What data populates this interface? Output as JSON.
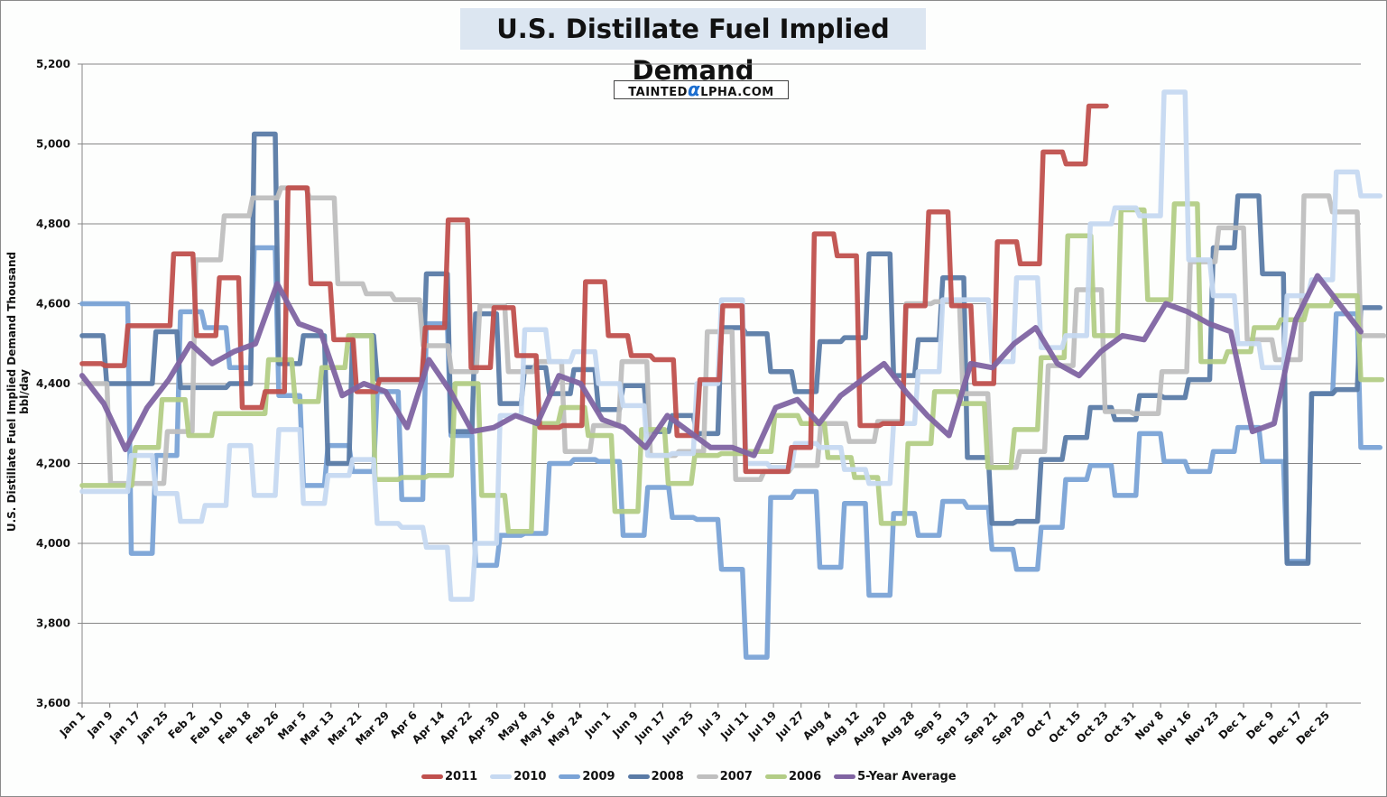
{
  "chart_data": {
    "type": "line",
    "title": "U.S. Distillate Fuel Implied Demand",
    "watermark": "TAINTEDαLPHA.COM",
    "xlabel": "",
    "ylabel": "U.S. Distillate Fuel Implied Demand Thousand bbl/day",
    "ylim": [
      3600,
      5200
    ],
    "yticks": [
      3600,
      3800,
      4000,
      4200,
      4400,
      4600,
      4800,
      5000,
      5200
    ],
    "ytick_labels": [
      "3,600",
      "3,800",
      "4,000",
      "4,200",
      "4,400",
      "4,600",
      "4,800",
      "5,000",
      "5,200"
    ],
    "grid": true,
    "legend_position": "bottom",
    "xtick_labels": [
      "Jan 1",
      "Jan 9",
      "Jan 17",
      "Jan 25",
      "Feb 2",
      "Feb 10",
      "Feb 18",
      "Feb 26",
      "Mar 5",
      "Mar 13",
      "Mar 21",
      "Mar 29",
      "Apr 6",
      "Apr 14",
      "Apr 22",
      "Apr 30",
      "May 8",
      "May 16",
      "May 24",
      "Jun 1",
      "Jun 9",
      "Jun 17",
      "Jun 25",
      "Jul 3",
      "Jul 11",
      "Jul 19",
      "Jul 27",
      "Aug 4",
      "Aug 12",
      "Aug 20",
      "Aug 28",
      "Sep 5",
      "Sep 13",
      "Sep 21",
      "Sep 29",
      "Oct 7",
      "Oct 15",
      "Oct 23",
      "Oct 31",
      "Nov 8",
      "Nov 16",
      "Nov 23",
      "Dec 1",
      "Dec 9",
      "Dec 17",
      "Dec 25"
    ],
    "x_weeks": "weekly observations, week 1 = Jan 1",
    "series": [
      {
        "name": "2011",
        "color": "#c0504d",
        "values": [
          4450,
          4445,
          4545,
          4545,
          4725,
          4520,
          4665,
          4340,
          4380,
          4890,
          4650,
          4510,
          4380,
          4410,
          4410,
          4540,
          4810,
          4440,
          4590,
          4470,
          4290,
          4295,
          4655,
          4520,
          4470,
          4460,
          4270,
          4410,
          4595,
          4180,
          4180,
          4240,
          4775,
          4720,
          4295,
          4300,
          4595,
          4830,
          4595,
          4400,
          4755,
          4700,
          4980,
          4950,
          5095
        ]
      },
      {
        "name": "2010",
        "color": "#c6d9f1",
        "values": [
          4130,
          4130,
          4220,
          4125,
          4055,
          4095,
          4245,
          4120,
          4285,
          4100,
          4170,
          4210,
          4050,
          4040,
          3990,
          3860,
          4000,
          4320,
          4535,
          4455,
          4480,
          4400,
          4345,
          4220,
          4225,
          4400,
          4610,
          4200,
          4190,
          4250,
          4240,
          4185,
          4150,
          4300,
          4430,
          4610,
          4610,
          4455,
          4665,
          4490,
          4520,
          4800,
          4840,
          4820,
          5130,
          4710,
          4620,
          4500,
          4440,
          4620,
          4660,
          4930,
          4870
        ]
      },
      {
        "name": "2009",
        "color": "#7aa3d6",
        "values": [
          4600,
          4600,
          3975,
          4220,
          4580,
          4540,
          4440,
          4740,
          4370,
          4145,
          4245,
          4180,
          4380,
          4110,
          4550,
          4270,
          3945,
          4020,
          4025,
          4200,
          4210,
          4205,
          4020,
          4140,
          4065,
          4060,
          3935,
          3715,
          4115,
          4130,
          3940,
          4100,
          3870,
          4075,
          4020,
          4105,
          4090,
          3985,
          3935,
          4040,
          4160,
          4195,
          4120,
          4275,
          4205,
          4180,
          4230,
          4290,
          4205,
          3955,
          4375,
          4575,
          4240
        ]
      },
      {
        "name": "2008",
        "color": "#5a7ba6",
        "values": [
          4520,
          4400,
          4400,
          4530,
          4390,
          4390,
          4400,
          5025,
          4450,
          4520,
          4200,
          4520,
          4410,
          4410,
          4675,
          4280,
          4575,
          4350,
          4440,
          4375,
          4435,
          4335,
          4395,
          4280,
          4320,
          4275,
          4540,
          4525,
          4430,
          4380,
          4505,
          4515,
          4725,
          4420,
          4510,
          4665,
          4215,
          4050,
          4055,
          4210,
          4265,
          4340,
          4310,
          4370,
          4365,
          4410,
          4740,
          4870,
          4675,
          3950,
          4375,
          4385,
          4590
        ]
      },
      {
        "name": "2007",
        "color": "#bfbfbf",
        "values": [
          4400,
          4150,
          4150,
          4280,
          4710,
          4820,
          4865,
          4890,
          4865,
          4650,
          4625,
          4610,
          4495,
          4430,
          4595,
          4430,
          4455,
          4230,
          4295,
          4455,
          4220,
          4230,
          4530,
          4160,
          4180,
          4195,
          4300,
          4255,
          4305,
          4600,
          4605,
          4375,
          4190,
          4230,
          4445,
          4635,
          4330,
          4325,
          4430,
          4705,
          4790,
          4510,
          4460,
          4870,
          4830,
          4520
        ]
      },
      {
        "name": "2006",
        "color": "#b3cd86",
        "values": [
          4145,
          4145,
          4240,
          4360,
          4270,
          4325,
          4325,
          4460,
          4355,
          4440,
          4520,
          4160,
          4165,
          4170,
          4400,
          4120,
          4030,
          4300,
          4340,
          4270,
          4080,
          4285,
          4150,
          4220,
          4225,
          4230,
          4320,
          4300,
          4215,
          4165,
          4050,
          4250,
          4380,
          4350,
          4190,
          4285,
          4465,
          4770,
          4520,
          4835,
          4610,
          4850,
          4455,
          4480,
          4540,
          4560,
          4595,
          4620,
          4410
        ]
      },
      {
        "name": "5-Year Average",
        "color": "#8064a2",
        "values": [
          4420,
          4350,
          4235,
          4340,
          4410,
          4500,
          4450,
          4480,
          4500,
          4650,
          4550,
          4530,
          4370,
          4400,
          4380,
          4290,
          4460,
          4380,
          4280,
          4290,
          4320,
          4300,
          4420,
          4400,
          4310,
          4290,
          4240,
          4320,
          4280,
          4240,
          4240,
          4220,
          4340,
          4360,
          4300,
          4370,
          4410,
          4450,
          4380,
          4320,
          4270,
          4450,
          4440,
          4500,
          4540,
          4450,
          4420,
          4480,
          4520,
          4510,
          4600,
          4580,
          4550,
          4530,
          4280,
          4300,
          4560,
          4670,
          4600,
          4530
        ]
      }
    ]
  },
  "legend": [
    "2011",
    "2010",
    "2009",
    "2008",
    "2007",
    "2006",
    "5-Year Average"
  ]
}
